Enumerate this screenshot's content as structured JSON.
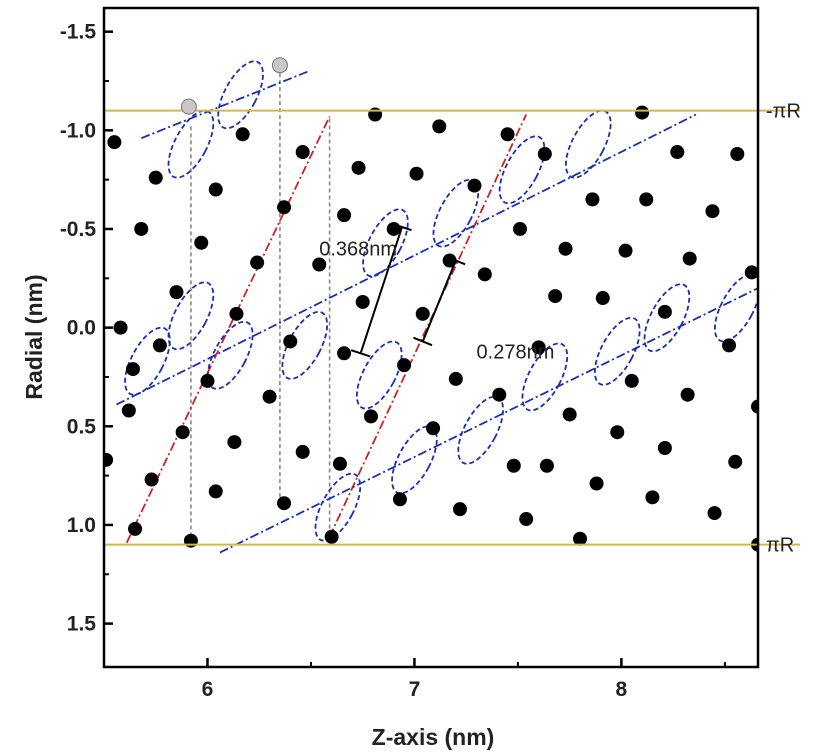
{
  "chart_data": {
    "type": "scatter",
    "xlabel": "Z-axis (nm)",
    "ylabel": "Radial (nm)",
    "xlim": [
      5.5,
      8.66
    ],
    "ylim": [
      -1.62,
      1.72
    ],
    "y_inverted": true,
    "grid": false,
    "xticks": [
      6,
      7,
      8
    ],
    "xtick_labels": [
      "6",
      "7",
      "8"
    ],
    "yticks": [
      -1.5,
      -1.0,
      -0.5,
      0.0,
      0.5,
      1.0,
      1.5
    ],
    "ytick_labels": [
      "-1.5",
      "-1.0",
      "-0.5",
      "0.0",
      "0.5",
      "1.0",
      "1.5"
    ],
    "reference_lines": [
      {
        "y": -1.1,
        "label": "-πR",
        "color": "#d4b84a"
      },
      {
        "y": 1.1,
        "label": "πR",
        "color": "#d4b84a"
      }
    ],
    "points": [
      [
        5.55,
        -0.94
      ],
      [
        5.58,
        0.0
      ],
      [
        5.51,
        0.67
      ],
      [
        5.62,
        0.42
      ],
      [
        5.64,
        0.21
      ],
      [
        5.68,
        -0.5
      ],
      [
        5.73,
        0.77
      ],
      [
        5.75,
        -0.76
      ],
      [
        5.77,
        0.09
      ],
      [
        5.65,
        1.02
      ],
      [
        5.85,
        -0.18
      ],
      [
        5.88,
        0.53
      ],
      [
        5.92,
        1.08
      ],
      [
        5.97,
        -0.43
      ],
      [
        6.0,
        0.27
      ],
      [
        6.04,
        -0.7
      ],
      [
        6.04,
        0.83
      ],
      [
        6.14,
        -0.07
      ],
      [
        6.13,
        0.58
      ],
      [
        6.17,
        -0.98
      ],
      [
        6.24,
        -0.33
      ],
      [
        6.3,
        0.35
      ],
      [
        6.37,
        -0.61
      ],
      [
        6.37,
        0.89
      ],
      [
        6.4,
        0.07
      ],
      [
        6.46,
        -0.89
      ],
      [
        6.46,
        0.63
      ],
      [
        6.54,
        -0.32
      ],
      [
        6.6,
        1.06
      ],
      [
        6.66,
        -0.57
      ],
      [
        6.66,
        0.13
      ],
      [
        6.64,
        0.69
      ],
      [
        6.73,
        -0.81
      ],
      [
        6.81,
        -1.08
      ],
      [
        6.79,
        0.45
      ],
      [
        6.75,
        -0.13
      ],
      [
        6.9,
        -0.5
      ],
      [
        6.95,
        0.19
      ],
      [
        6.93,
        0.87
      ],
      [
        7.01,
        -0.78
      ],
      [
        7.04,
        -0.07
      ],
      [
        7.09,
        0.51
      ],
      [
        7.12,
        -1.02
      ],
      [
        7.17,
        -0.34
      ],
      [
        7.2,
        0.26
      ],
      [
        7.22,
        0.92
      ],
      [
        7.29,
        -0.72
      ],
      [
        7.34,
        -0.27
      ],
      [
        7.41,
        0.34
      ],
      [
        7.45,
        -0.98
      ],
      [
        7.48,
        0.7
      ],
      [
        7.51,
        -0.5
      ],
      [
        7.54,
        0.97
      ],
      [
        7.6,
        0.1
      ],
      [
        7.63,
        -0.88
      ],
      [
        7.64,
        0.7
      ],
      [
        7.68,
        -0.16
      ],
      [
        7.73,
        -0.4
      ],
      [
        7.75,
        0.44
      ],
      [
        7.8,
        1.07
      ],
      [
        7.86,
        -0.65
      ],
      [
        7.88,
        0.79
      ],
      [
        7.91,
        -0.15
      ],
      [
        7.98,
        0.53
      ],
      [
        8.02,
        -0.39
      ],
      [
        8.05,
        0.27
      ],
      [
        8.1,
        -1.09
      ],
      [
        8.12,
        -0.65
      ],
      [
        8.15,
        0.86
      ],
      [
        8.21,
        0.61
      ],
      [
        8.21,
        -0.08
      ],
      [
        8.27,
        -0.89
      ],
      [
        8.32,
        0.34
      ],
      [
        8.33,
        -0.35
      ],
      [
        8.44,
        -0.59
      ],
      [
        8.45,
        0.94
      ],
      [
        8.52,
        0.09
      ],
      [
        8.55,
        0.68
      ],
      [
        8.56,
        -0.88
      ],
      [
        8.63,
        -0.28
      ],
      [
        8.66,
        0.4
      ],
      [
        8.66,
        1.1
      ]
    ],
    "highlight_points": [
      [
        5.91,
        -1.12
      ],
      [
        6.35,
        -1.33
      ]
    ],
    "red_lines": [
      {
        "from": [
          5.61,
          1.09
        ],
        "to": [
          6.59,
          -1.07
        ]
      },
      {
        "from": [
          6.59,
          1.06
        ],
        "to": [
          7.54,
          -1.08
        ]
      }
    ],
    "blue_lines": [
      {
        "from": [
          5.68,
          -0.96
        ],
        "to": [
          6.49,
          -1.3
        ]
      },
      {
        "from": [
          5.56,
          0.39
        ],
        "to": [
          8.36,
          -1.08
        ]
      },
      {
        "from": [
          6.06,
          1.14
        ],
        "to": [
          8.66,
          -0.2
        ]
      }
    ],
    "dashed_verticals": [
      {
        "x": 5.92,
        "from": -1.02,
        "to": 1.06
      },
      {
        "x": 6.35,
        "from": -1.29,
        "to": 0.89
      },
      {
        "x": 6.59,
        "from": -1.06,
        "to": 1.04
      }
    ],
    "ellipses": [
      [
        5.92,
        -0.93
      ],
      [
        6.16,
        -1.18
      ],
      [
        5.71,
        0.17
      ],
      [
        5.92,
        -0.06
      ],
      [
        6.11,
        0.14
      ],
      [
        6.47,
        0.09
      ],
      [
        6.83,
        0.24
      ],
      [
        6.86,
        -0.43
      ],
      [
        7.2,
        -0.58
      ],
      [
        7.52,
        -0.8
      ],
      [
        7.84,
        -0.93
      ],
      [
        6.63,
        0.91
      ],
      [
        7.0,
        0.67
      ],
      [
        7.32,
        0.52
      ],
      [
        7.63,
        0.25
      ],
      [
        7.98,
        0.12
      ],
      [
        8.22,
        -0.05
      ],
      [
        8.56,
        -0.1
      ]
    ],
    "measurements": [
      {
        "label": "0.368nm",
        "from": [
          6.74,
          0.13
        ],
        "to": [
          6.94,
          -0.51
        ],
        "label_at": [
          6.54,
          -0.4
        ]
      },
      {
        "label": "0.278nm",
        "from": [
          7.04,
          0.07
        ],
        "to": [
          7.2,
          -0.34
        ],
        "label_at": [
          7.3,
          0.12
        ]
      }
    ],
    "colors": {
      "points": "#000000",
      "highlight": "#c8c8c8",
      "red_line": "#cc2222",
      "blue_line": "#1a2fb0",
      "ellipse": "#1a2fb0",
      "reference_line": "#d4b84a",
      "dashed_vertical": "#888888"
    }
  }
}
